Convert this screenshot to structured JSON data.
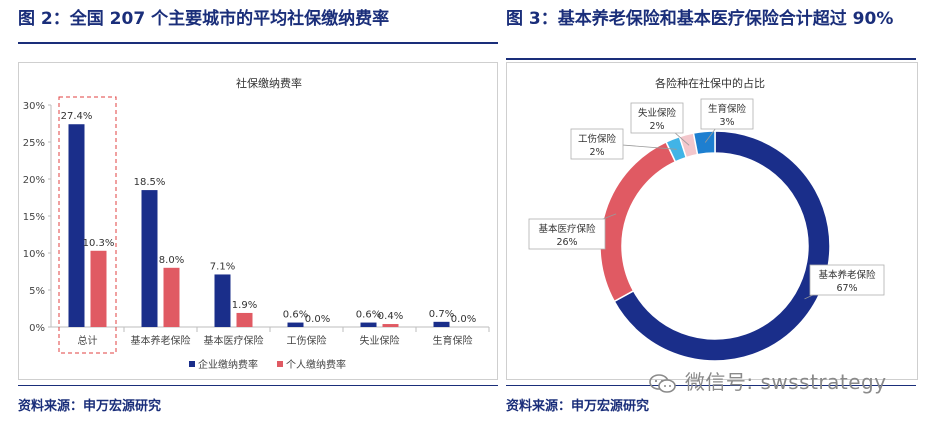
{
  "fig1": {
    "title": "图 2：全国 207 个主要城市的平均社保缴纳费率",
    "source": "资料来源：申万宏源研究"
  },
  "fig2": {
    "title": "图 3：基本养老保险和基本医疗保险合计超过 90%",
    "source": "资料来源：申万宏源研究"
  },
  "watermark": "微信号: swsstrategy",
  "colors": {
    "navy": "#1a2e8a",
    "red": "#e05a63",
    "light_blue": "#41b4e6",
    "pink": "#f3c7cc",
    "frame": "#1a2e7a",
    "dashed": "#e04040"
  },
  "chart_data": [
    {
      "type": "bar",
      "title": "社保缴纳费率",
      "categories": [
        "总计",
        "基本养老保险",
        "基本医疗保险",
        "工伤保险",
        "失业保险",
        "生育保险"
      ],
      "series": [
        {
          "name": "企业缴纳费率",
          "values": [
            27.4,
            18.5,
            7.1,
            0.6,
            0.6,
            0.7
          ],
          "labels": [
            "27.4%",
            "18.5%",
            "7.1%",
            "0.6%",
            "0.6%",
            "0.7%"
          ]
        },
        {
          "name": "个人缴纳费率",
          "values": [
            10.3,
            8.0,
            1.9,
            0.0,
            0.4,
            0.0
          ],
          "labels": [
            "10.3%",
            "8.0%",
            "1.9%",
            "0.0%",
            "0.4%",
            "0.0%"
          ]
        }
      ],
      "ylim": [
        0,
        30
      ],
      "yticks": [
        "0%",
        "5%",
        "10%",
        "15%",
        "20%",
        "25%",
        "30%"
      ],
      "legend": "bottom"
    },
    {
      "type": "pie",
      "title": "各险种在社保中的占比",
      "slices": [
        {
          "label": "基本养老保险",
          "value": 67,
          "text": "67%"
        },
        {
          "label": "基本医疗保险",
          "value": 26,
          "text": "26%"
        },
        {
          "label": "工伤保险",
          "value": 2,
          "text": "2%"
        },
        {
          "label": "失业保险",
          "value": 2,
          "text": "2%"
        },
        {
          "label": "生育保险",
          "value": 3,
          "text": "3%"
        }
      ]
    }
  ]
}
